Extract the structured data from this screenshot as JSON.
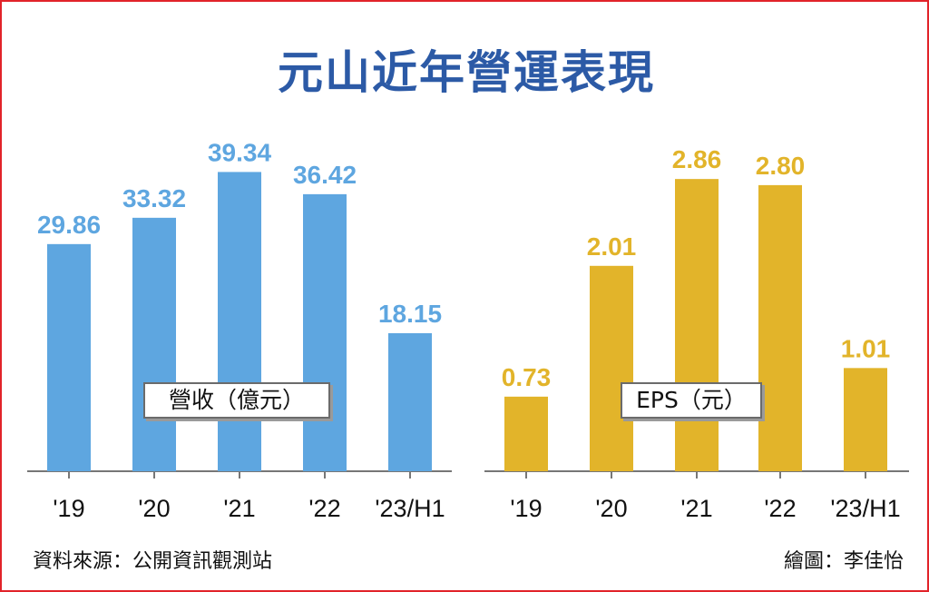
{
  "title": "元山近年營運表現",
  "source_note": "資料來源：公開資訊觀測站",
  "credit_note": "繪圖：李佳怡",
  "colors": {
    "revenue_bar": "#5ea6e0",
    "eps_bar": "#e2b42a",
    "title": "#2c5aa6",
    "frame": "#e2232a"
  },
  "chart_data": [
    {
      "type": "bar",
      "legend": "營收（億元）",
      "categories": [
        "'19",
        "'20",
        "'21",
        "'22",
        "'23/H1"
      ],
      "values": [
        29.86,
        33.32,
        39.34,
        36.42,
        18.15
      ],
      "value_labels": [
        "29.86",
        "33.32",
        "39.34",
        "36.42",
        "18.15"
      ],
      "ylim": [
        0,
        45
      ]
    },
    {
      "type": "bar",
      "legend": "EPS（元）",
      "categories": [
        "'19",
        "'20",
        "'21",
        "'22",
        "'23/H1"
      ],
      "values": [
        0.73,
        2.01,
        2.86,
        2.8,
        1.01
      ],
      "value_labels": [
        "0.73",
        "2.01",
        "2.86",
        "2.80",
        "1.01"
      ],
      "ylim": [
        0,
        3.35
      ]
    }
  ]
}
